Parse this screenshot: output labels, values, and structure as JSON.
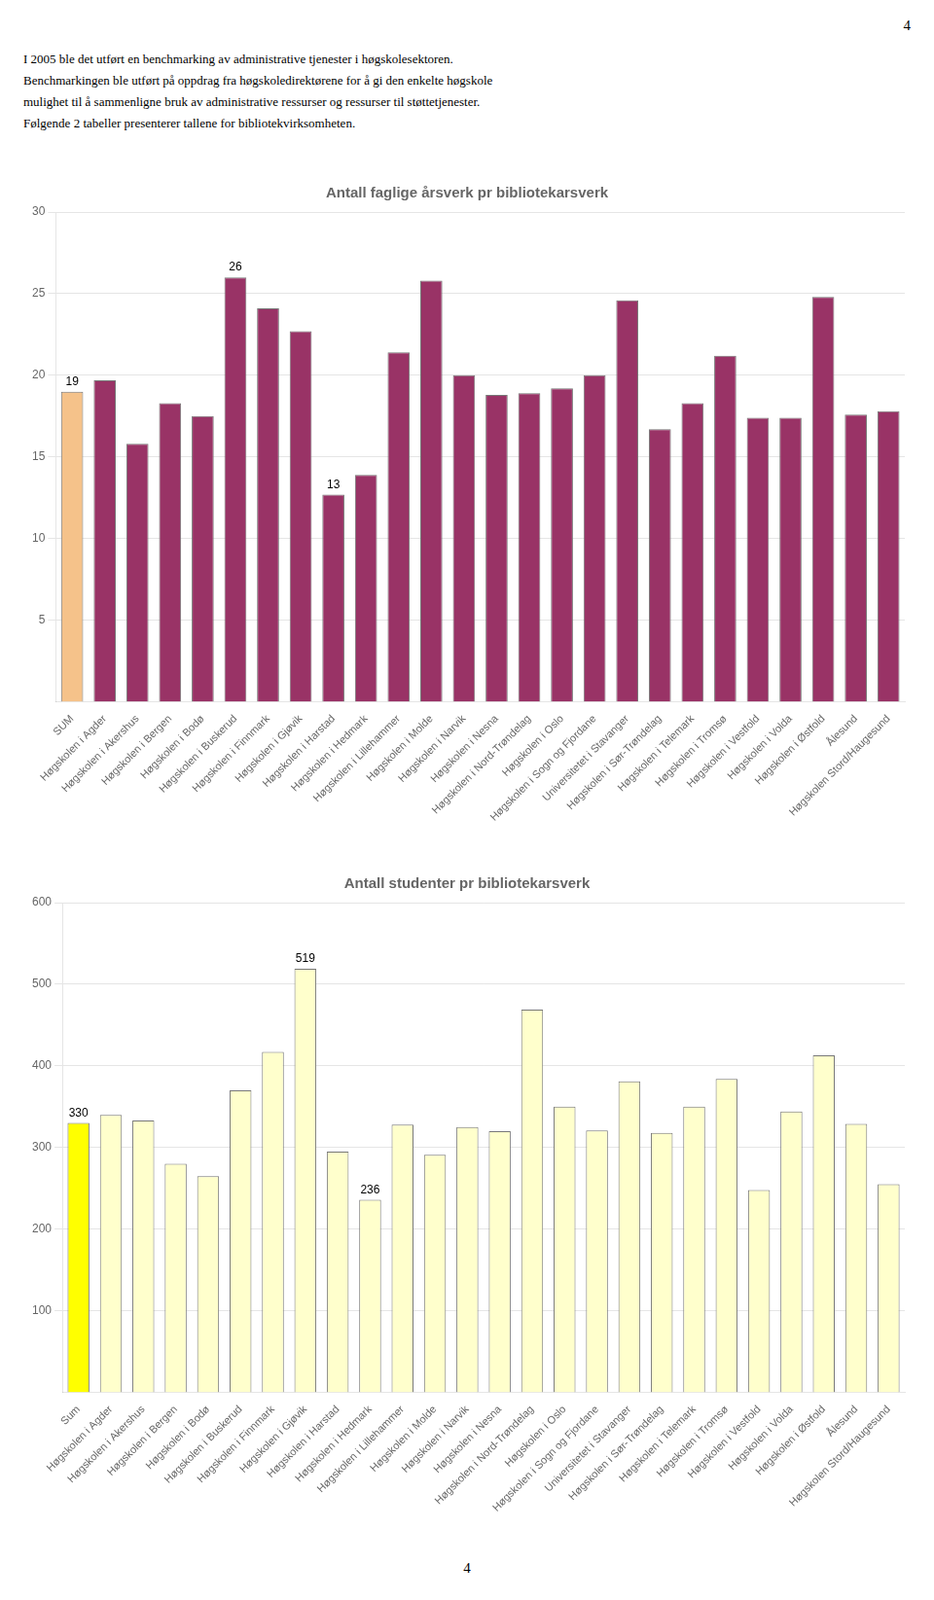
{
  "page_number": "4",
  "text_lines": [
    "I 2005 ble det utført en benchmarking av administrative tjenester i høgskolesektoren.",
    "Benchmarkingen ble utført på oppdrag fra høgskoledirektørene for å gi den enkelte høgskole",
    "mulighet til å sammenligne bruk av administrative ressurser og ressurser til støttetjenester.",
    "Følgende 2 tabeller presenterer tallene for bibliotekvirksomheten."
  ],
  "chart_data": [
    {
      "type": "bar",
      "title": "Antall faglige årsverk pr bibliotekarsverk",
      "categories": [
        "SUM",
        "Høgskolen i Agder",
        "Høgskolen i Akershus",
        "Høgskolen i Bergen",
        "Høgskolen i Bodø",
        "Høgskolen i Buskerud",
        "Høgskolen i Finnmark",
        "Høgskolen i Gjøvik",
        "Høgskolen i Harstad",
        "Høgskolen i Hedmark",
        "Høgskolen i Lillehammer",
        "Høgskolen i Molde",
        "Høgskolen i Narvik",
        "Høgskolen i Nesna",
        "Høgskolen i Nord-Trøndelag",
        "Høgskolen i Oslo",
        "Høgskolen i Sogn og Fjordane",
        "Universitetet i Stavanger",
        "Høgskolen i Sør-Trøndelag",
        "Høgskolen i Telemark",
        "Høgskolen i Tromsø",
        "Høgskolen i Vestfold",
        "Høgskolen i Volda",
        "Høgskolen i Østfold",
        "Ålesund",
        "Høgskolen Stord/Haugesund"
      ],
      "values": [
        19.0,
        19.7,
        15.8,
        18.3,
        17.5,
        26.0,
        24.1,
        22.7,
        12.7,
        13.9,
        21.4,
        25.8,
        20.0,
        18.8,
        18.9,
        19.2,
        20.0,
        24.6,
        16.7,
        18.3,
        21.2,
        17.4,
        17.4,
        24.8,
        17.6,
        17.8
      ],
      "value_labels": [
        "19",
        null,
        null,
        null,
        null,
        "26",
        null,
        null,
        "13",
        null,
        null,
        null,
        null,
        null,
        null,
        null,
        null,
        null,
        null,
        null,
        null,
        null,
        null,
        null,
        null,
        null
      ],
      "colors": [
        "#f5c28a",
        "#993366",
        "#993366",
        "#993366",
        "#993366",
        "#993366",
        "#993366",
        "#993366",
        "#993366",
        "#993366",
        "#993366",
        "#993366",
        "#993366",
        "#993366",
        "#993366",
        "#993366",
        "#993366",
        "#993366",
        "#993366",
        "#993366",
        "#993366",
        "#993366",
        "#993366",
        "#993366",
        "#993366",
        "#993366"
      ],
      "ylim": [
        0,
        30
      ],
      "yticks": [
        5,
        10,
        15,
        20,
        25,
        30
      ],
      "grid": true
    },
    {
      "type": "bar",
      "title": "Antall studenter pr bibliotekarsverk",
      "categories": [
        "Sum",
        "Høgskolen i Agder",
        "Høgskolen i Akershus",
        "Høgskolen i Bergen",
        "Høgskolen i Bodø",
        "Høgskolen i Buskerud",
        "Høgskolen i Finnmark",
        "Høgskolen i Gjøvik",
        "Høgskolen i Harstad",
        "Høgskolen i Hedmark",
        "Høgskolen i Lillehammer",
        "Høgskolen i Molde",
        "Høgskolen i Narvik",
        "Høgskolen i Nesna",
        "Høgskolen i Nord-Trøndelag",
        "Høgskolen i Oslo",
        "Høgskolen i Sogn og Fjordane",
        "Universitetet i Stavanger",
        "Høgskolen i Sør-Trøndelag",
        "Høgskolen i Telemark",
        "Høgskolen i Tromsø",
        "Høgskolen i Vestfold",
        "Høgskolen i Volda",
        "Høgskolen i Østfold",
        "Ålesund",
        "Høgskolen Stord/Haugesund"
      ],
      "values": [
        330,
        340,
        333,
        280,
        265,
        370,
        417,
        519,
        295,
        236,
        328,
        291,
        325,
        320,
        469,
        350,
        321,
        381,
        318,
        350,
        384,
        248,
        344,
        413,
        329,
        255
      ],
      "value_labels": [
        "330",
        null,
        null,
        null,
        null,
        null,
        null,
        "519",
        null,
        "236",
        null,
        null,
        null,
        null,
        null,
        null,
        null,
        null,
        null,
        null,
        null,
        null,
        null,
        null,
        null,
        null
      ],
      "colors": [
        "#ffff00",
        "#ffffcc",
        "#ffffcc",
        "#ffffcc",
        "#ffffcc",
        "#ffffcc",
        "#ffffcc",
        "#ffffcc",
        "#ffffcc",
        "#ffffcc",
        "#ffffcc",
        "#ffffcc",
        "#ffffcc",
        "#ffffcc",
        "#ffffcc",
        "#ffffcc",
        "#ffffcc",
        "#ffffcc",
        "#ffffcc",
        "#ffffcc",
        "#ffffcc",
        "#ffffcc",
        "#ffffcc",
        "#ffffcc",
        "#ffffcc",
        "#ffffcc"
      ],
      "ylim": [
        0,
        600
      ],
      "yticks": [
        100,
        200,
        300,
        400,
        500,
        600
      ],
      "grid": true
    }
  ]
}
